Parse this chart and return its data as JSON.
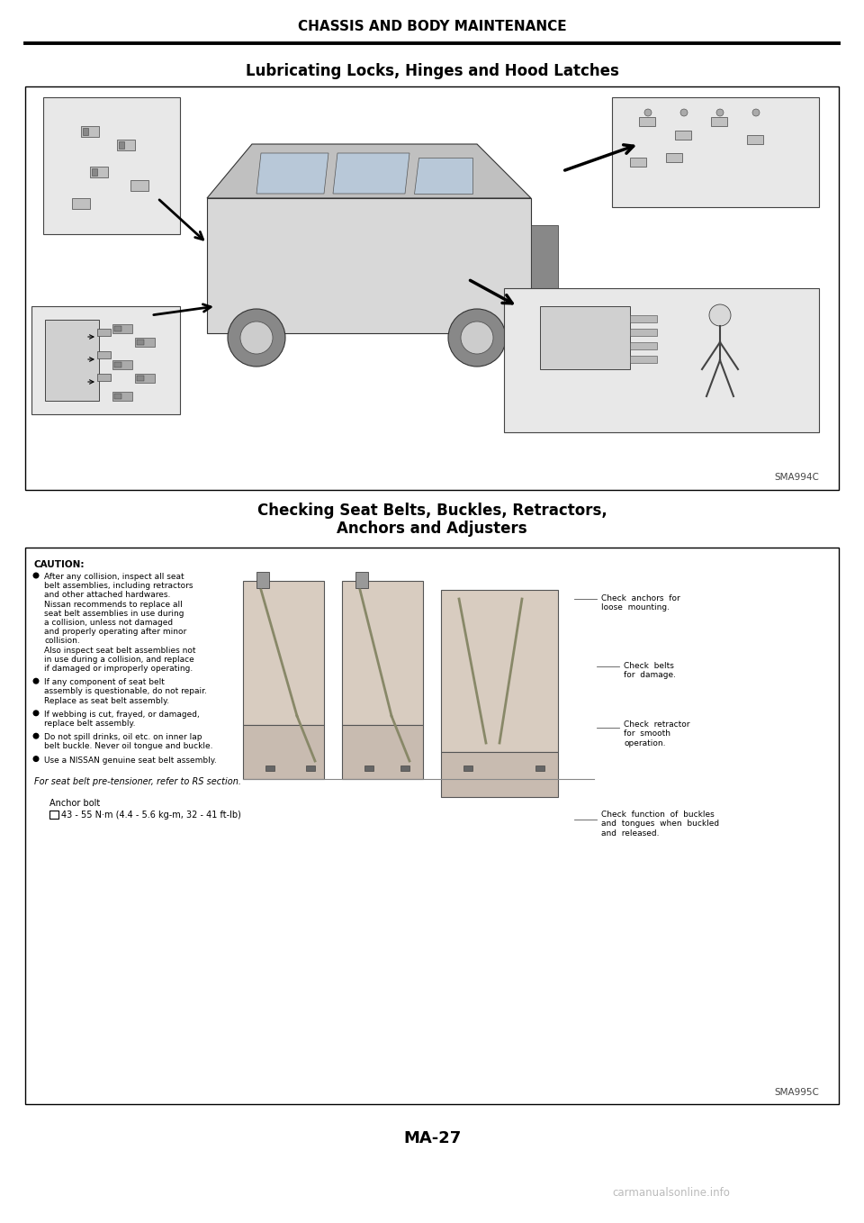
{
  "page_title": "CHASSIS AND BODY MAINTENANCE",
  "section1_title": "Lubricating Locks, Hinges and Hood Latches",
  "section2_title_line1": "Checking Seat Belts, Buckles, Retractors,",
  "section2_title_line2": "Anchors and Adjusters",
  "page_number": "MA-27",
  "image1_label": "SMA994C",
  "image2_label": "SMA995C",
  "caution_title": "CAUTION:",
  "caution_bullets": [
    "After any collision, inspect all seat\nbelt assemblies, including retractors\nand other attached hardwares.\nNissan recommends to replace all\nseat belt assemblies in use during\na collision, unless not damaged\nand properly operating after minor\ncollision.\nAlso inspect seat belt assemblies not\nin use during a collision, and replace\nif damaged or improperly operating.",
    "If any component of seat belt\nassembly is questionable, do not repair.\nReplace as seat belt assembly.",
    "If webbing is cut, frayed, or damaged,\nreplace belt assembly.",
    "Do not spill drinks, oil etc. on inner lap\nbelt buckle. Never oil tongue and buckle.",
    "Use a NISSAN genuine seat belt assembly."
  ],
  "pretensioner_note": "For seat belt pre-tensioner, refer to RS section.",
  "anchor_bolt_label": "Anchor bolt",
  "anchor_bolt_spec": "43 - 55 N·m (4.4 - 5.6 kg-m, 32 - 41 ft-lb)",
  "check_label_1": "Check  anchors  for\nloose  mounting.",
  "check_label_2": "Check  belts\nfor  damage.",
  "check_label_3": "Check  retractor\nfor  smooth\noperation.",
  "check_label_4": "Check  function  of  buckles\nand  tongues  when  buckled\nand  released.",
  "bg_color": "#ffffff",
  "text_color": "#000000",
  "watermark_color": "#bbbbbb",
  "watermark_text": "carmanualsonline.info",
  "title_fontsize": 11,
  "section_fontsize": 12,
  "body_fontsize": 7,
  "small_fontsize": 6.5
}
